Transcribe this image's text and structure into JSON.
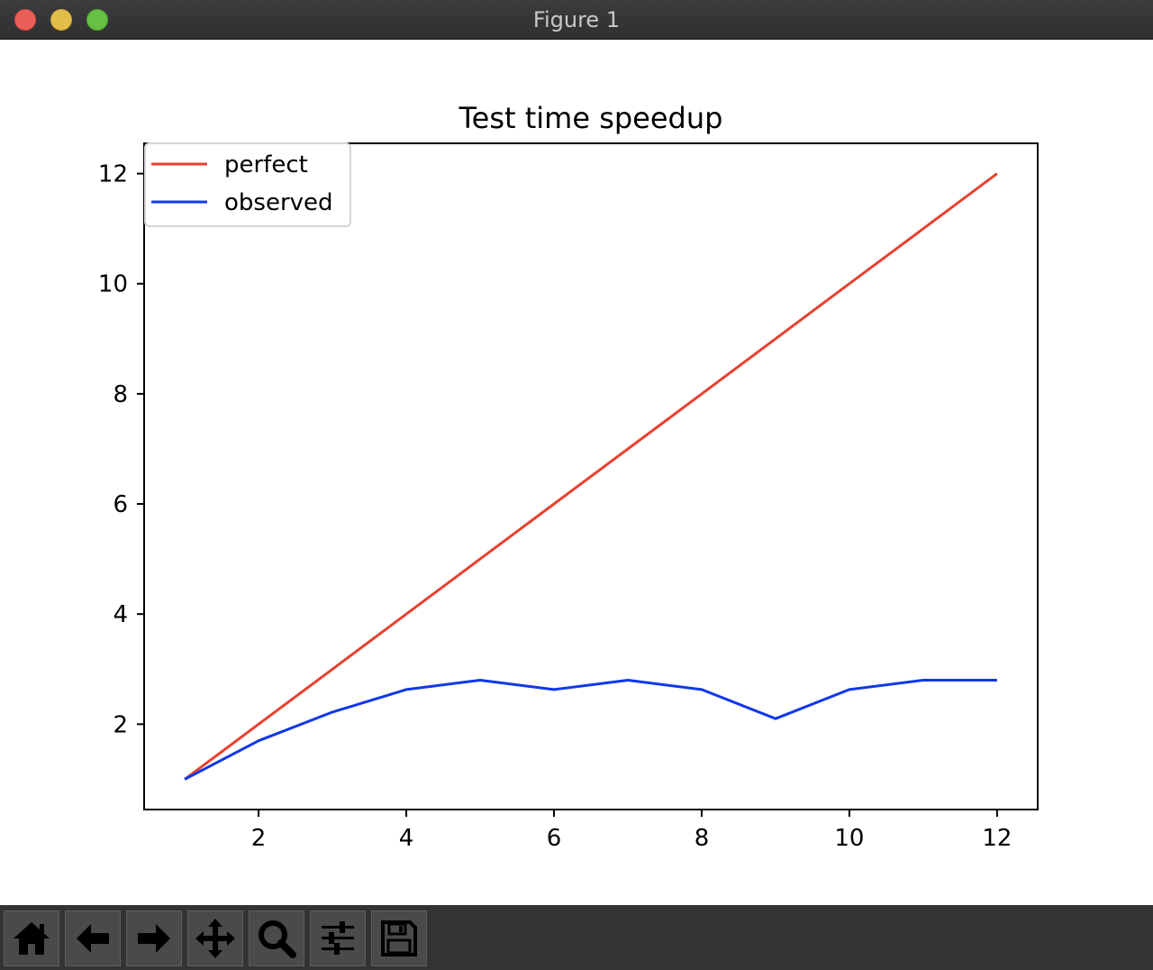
{
  "window": {
    "title": "Figure 1"
  },
  "toolbar": {
    "buttons": [
      {
        "icon": "home-icon"
      },
      {
        "icon": "back-arrow-icon"
      },
      {
        "icon": "forward-arrow-icon"
      },
      {
        "icon": "pan-move-icon"
      },
      {
        "icon": "zoom-magnifier-icon"
      },
      {
        "icon": "subplots-sliders-icon"
      },
      {
        "icon": "save-floppy-icon"
      }
    ]
  },
  "chart_data": {
    "type": "line",
    "title": "Test time speedup",
    "xlabel": "",
    "ylabel": "",
    "xlim": [
      0.45,
      12.55
    ],
    "ylim": [
      0.45,
      12.55
    ],
    "xticks": [
      2,
      4,
      6,
      8,
      10,
      12
    ],
    "yticks": [
      2,
      4,
      6,
      8,
      10,
      12
    ],
    "grid": false,
    "legend": "top-left",
    "series": [
      {
        "name": "perfect",
        "color": "#e8412f",
        "x": [
          1,
          2,
          3,
          4,
          5,
          6,
          7,
          8,
          9,
          10,
          11,
          12
        ],
        "y": [
          1,
          2,
          3,
          4,
          5,
          6,
          7,
          8,
          9,
          10,
          11,
          12
        ]
      },
      {
        "name": "observed",
        "color": "#1038e8",
        "x": [
          1,
          2,
          3,
          4,
          5,
          6,
          7,
          8,
          9,
          10,
          11,
          12
        ],
        "y": [
          1.0,
          1.7,
          2.22,
          2.63,
          2.8,
          2.63,
          2.8,
          2.63,
          2.1,
          2.63,
          2.8,
          2.8
        ]
      }
    ]
  }
}
